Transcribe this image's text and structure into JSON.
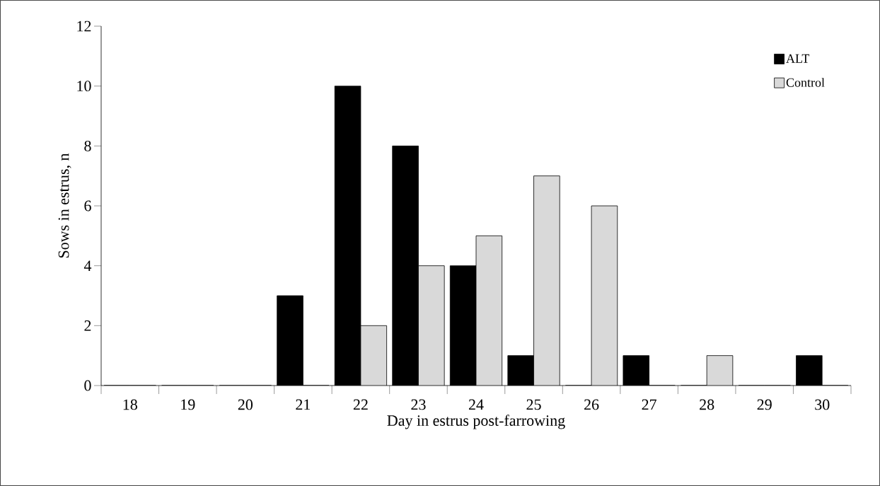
{
  "chart_data": {
    "type": "bar",
    "xlabel": "Day in estrus post-farrowing",
    "ylabel": "Sows in estrus, n",
    "categories": [
      "18",
      "19",
      "20",
      "21",
      "22",
      "23",
      "24",
      "25",
      "26",
      "27",
      "28",
      "29",
      "30"
    ],
    "series": [
      {
        "name": "ALT",
        "color": "#000000",
        "values": [
          0,
          0,
          0,
          3,
          10,
          8,
          4,
          1,
          0,
          1,
          0,
          0,
          1
        ]
      },
      {
        "name": "Control",
        "color": "#d9d9d9",
        "values": [
          0,
          0,
          0,
          0,
          2,
          4,
          5,
          7,
          6,
          0,
          1,
          0,
          0
        ]
      }
    ],
    "ylim": [
      0,
      12
    ],
    "yticks": [
      0,
      2,
      4,
      6,
      8,
      10,
      12
    ],
    "grid": false,
    "legend": "top right"
  }
}
